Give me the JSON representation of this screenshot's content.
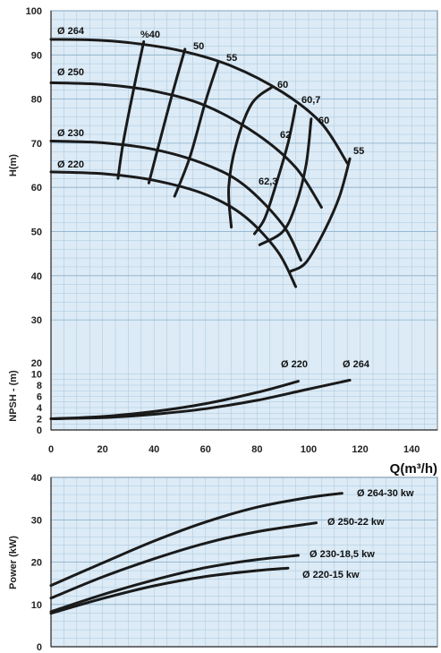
{
  "chart_data": [
    {
      "type": "line",
      "name": "head-curves",
      "ylabel": "H(m)",
      "xlim": [
        0,
        150
      ],
      "ylim": [
        30,
        100
      ],
      "x_ticks": [
        0,
        20,
        40,
        60,
        80,
        100,
        120,
        140
      ],
      "y_ticks": [
        30,
        40,
        50,
        60,
        70,
        80,
        90,
        100
      ],
      "grid": true,
      "impellers": [
        {
          "label": "Ø 264",
          "points": [
            [
              0,
              93.5
            ],
            [
              15,
              93.4
            ],
            [
              30,
              92.8
            ],
            [
              50,
              91
            ],
            [
              70,
              87.5
            ],
            [
              90,
              81.5
            ],
            [
              105,
              74.5
            ],
            [
              115,
              65.5
            ]
          ]
        },
        {
          "label": "Ø 250",
          "points": [
            [
              0,
              83.7
            ],
            [
              20,
              83.3
            ],
            [
              40,
              81.8
            ],
            [
              60,
              78.5
            ],
            [
              80,
              72
            ],
            [
              95,
              64.5
            ],
            [
              105,
              55.5
            ]
          ]
        },
        {
          "label": "Ø 230",
          "points": [
            [
              0,
              70.5
            ],
            [
              20,
              70.1
            ],
            [
              40,
              68.6
            ],
            [
              60,
              65.2
            ],
            [
              75,
              60.5
            ],
            [
              90,
              51.5
            ],
            [
              97,
              43.5
            ]
          ]
        },
        {
          "label": "Ø 220",
          "points": [
            [
              0,
              63.5
            ],
            [
              20,
              63.1
            ],
            [
              40,
              61.6
            ],
            [
              60,
              58.4
            ],
            [
              75,
              53.5
            ],
            [
              88,
              45.5
            ],
            [
              95,
              37.5
            ]
          ]
        }
      ],
      "efficiency_lines": [
        {
          "label": "%40",
          "points": [
            [
              36,
              93
            ],
            [
              32,
              82
            ],
            [
              28,
              70
            ],
            [
              26,
              62
            ]
          ]
        },
        {
          "label": "50",
          "points": [
            [
              52,
              91.3
            ],
            [
              47,
              81
            ],
            [
              42,
              70
            ],
            [
              38,
              61
            ]
          ]
        },
        {
          "label": "55",
          "points": [
            [
              65,
              88.5
            ],
            [
              60,
              79.5
            ],
            [
              54,
              67
            ],
            [
              48,
              58
            ]
          ]
        },
        {
          "label": "60",
          "points": [
            [
              86,
              82.8
            ],
            [
              78,
              79
            ],
            [
              72,
              70
            ],
            [
              69,
              60
            ],
            [
              70,
              51
            ]
          ]
        },
        {
          "label": "60,7",
          "points": [
            [
              95,
              78.5
            ],
            [
              92,
              70
            ],
            [
              87,
              60
            ],
            [
              83,
              53
            ],
            [
              79,
              49.5
            ]
          ]
        },
        {
          "label": "60",
          "points": [
            [
              101,
              75.5
            ],
            [
              99,
              65
            ],
            [
              95,
              56
            ],
            [
              90,
              50
            ],
            [
              81,
              47
            ]
          ]
        },
        {
          "label": "55",
          "points": [
            [
              116,
              66.5
            ],
            [
              112,
              58
            ],
            [
              106,
              50
            ],
            [
              99,
              43
            ],
            [
              93,
              41
            ]
          ]
        }
      ],
      "inner_labels": [
        "62",
        "62,3"
      ]
    },
    {
      "type": "line",
      "name": "npsh-curves",
      "ylabel": "NPSH - (m)",
      "xlabel": "Q(m³/h)",
      "xlim": [
        0,
        150
      ],
      "y_ticks": [
        0,
        2,
        4,
        6,
        8,
        10,
        20
      ],
      "x_ticks": [
        0,
        20,
        40,
        60,
        80,
        100,
        120,
        140
      ],
      "series": [
        {
          "label": "Ø 220",
          "points": [
            [
              0,
              2.0
            ],
            [
              20,
              2.4
            ],
            [
              40,
              3.3
            ],
            [
              60,
              4.7
            ],
            [
              80,
              6.7
            ],
            [
              96,
              8.7
            ]
          ]
        },
        {
          "label": "Ø 264",
          "points": [
            [
              0,
              2.0
            ],
            [
              20,
              2.2
            ],
            [
              40,
              2.8
            ],
            [
              60,
              3.8
            ],
            [
              80,
              5.3
            ],
            [
              100,
              7.3
            ],
            [
              116,
              8.9
            ]
          ]
        }
      ]
    },
    {
      "type": "line",
      "name": "power-curves",
      "ylabel": "Power (kW)",
      "xlim": [
        0,
        150
      ],
      "ylim": [
        0,
        40
      ],
      "y_ticks": [
        0,
        10,
        20,
        30,
        40
      ],
      "grid": true,
      "series": [
        {
          "label": "Ø 264-30 kw",
          "points": [
            [
              0,
              14.5
            ],
            [
              20,
              19.8
            ],
            [
              40,
              25
            ],
            [
              60,
              29.5
            ],
            [
              80,
              33
            ],
            [
              100,
              35.3
            ],
            [
              113,
              36.3
            ]
          ]
        },
        {
          "label": "Ø 250-22 kw",
          "points": [
            [
              0,
              11.5
            ],
            [
              20,
              16.5
            ],
            [
              40,
              20.8
            ],
            [
              60,
              24.5
            ],
            [
              80,
              27.2
            ],
            [
              103,
              29.3
            ]
          ]
        },
        {
          "label": "Ø 230-18,5 kw",
          "points": [
            [
              0,
              8.3
            ],
            [
              20,
              12.3
            ],
            [
              40,
              15.8
            ],
            [
              60,
              18.7
            ],
            [
              80,
              20.6
            ],
            [
              96,
              21.6
            ]
          ]
        },
        {
          "label": "Ø 220-15 kw",
          "points": [
            [
              0,
              7.9
            ],
            [
              20,
              11.4
            ],
            [
              40,
              14.4
            ],
            [
              60,
              16.6
            ],
            [
              80,
              18
            ],
            [
              92,
              18.6
            ]
          ]
        }
      ]
    }
  ]
}
